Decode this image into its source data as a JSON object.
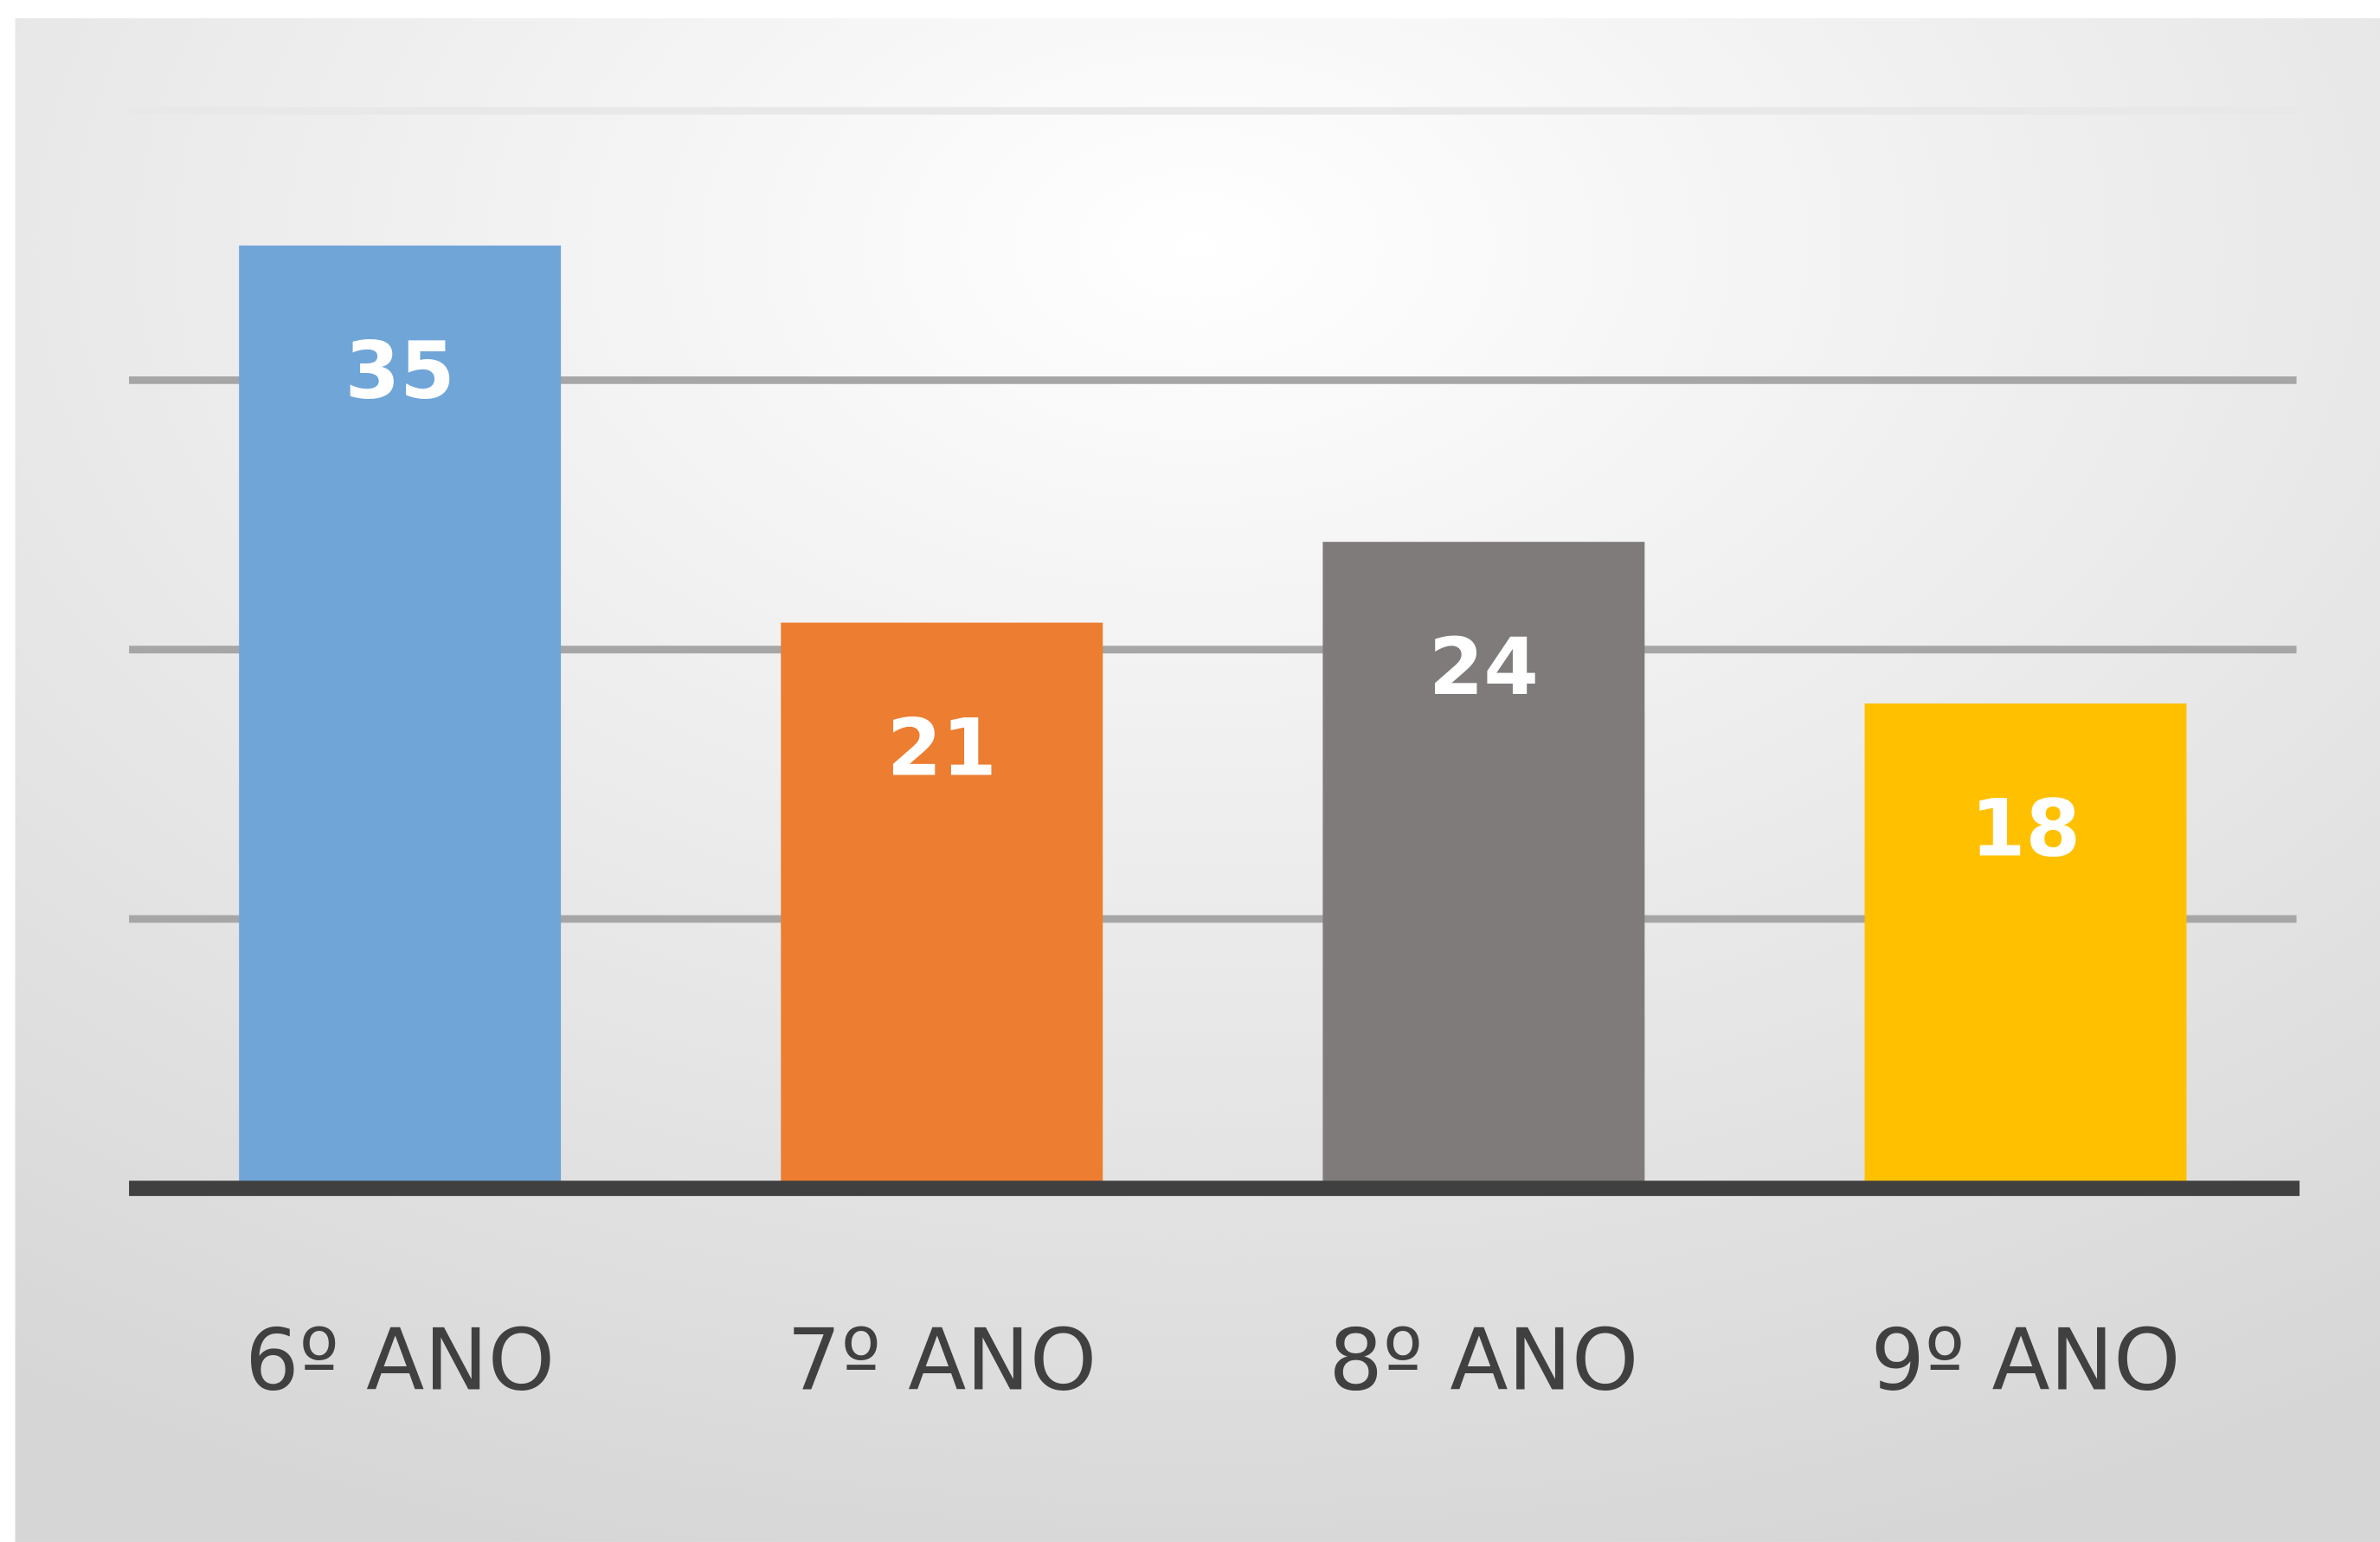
{
  "chart_data": {
    "type": "bar",
    "categories": [
      "6º ANO",
      "7º ANO",
      "8º ANO",
      "9º ANO"
    ],
    "values": [
      35,
      21,
      24,
      18
    ],
    "colors": [
      "#70a5d8",
      "#ed7d31",
      "#7f7b7b",
      "#ffc000"
    ],
    "ylim": [
      0,
      40
    ],
    "yticks": [
      0,
      10,
      20,
      30,
      40
    ],
    "grid": true
  }
}
